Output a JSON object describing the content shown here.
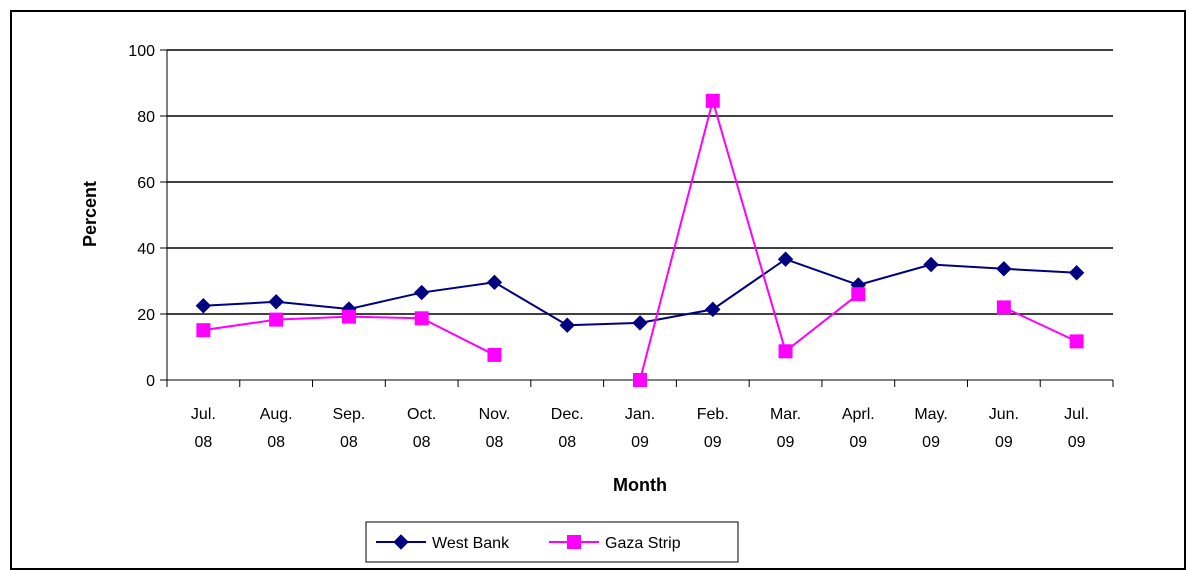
{
  "chart_data": {
    "type": "line",
    "title": "",
    "xlabel": "Month",
    "ylabel": "Percent",
    "ylim": [
      0,
      100
    ],
    "yticks": [
      0,
      20,
      40,
      60,
      80,
      100
    ],
    "grid": true,
    "legend_position": "bottom",
    "categories": [
      [
        "Jul.",
        "08"
      ],
      [
        "Aug.",
        "08"
      ],
      [
        "Sep.",
        "08"
      ],
      [
        "Oct.",
        "08"
      ],
      [
        "Nov.",
        "08"
      ],
      [
        "Dec.",
        "08"
      ],
      [
        "Jan.",
        "09"
      ],
      [
        "Feb.",
        "09"
      ],
      [
        "Mar.",
        "09"
      ],
      [
        "Aprl.",
        "09"
      ],
      [
        "May.",
        "09"
      ],
      [
        "Jun.",
        "09"
      ],
      [
        "Jul.",
        "09"
      ]
    ],
    "series": [
      {
        "name": "West Bank",
        "color": "#000080",
        "marker": "diamond",
        "values": [
          22.5,
          23.7,
          21.5,
          26.5,
          29.6,
          16.6,
          17.3,
          21.4,
          36.6,
          28.8,
          35.0,
          33.7,
          32.5
        ]
      },
      {
        "name": "Gaza Strip",
        "color": "#FF00FF",
        "marker": "square",
        "values": [
          15.1,
          18.3,
          19.2,
          18.7,
          7.6,
          null,
          0.0,
          84.6,
          8.7,
          26.0,
          null,
          22.0,
          11.7
        ]
      }
    ]
  }
}
